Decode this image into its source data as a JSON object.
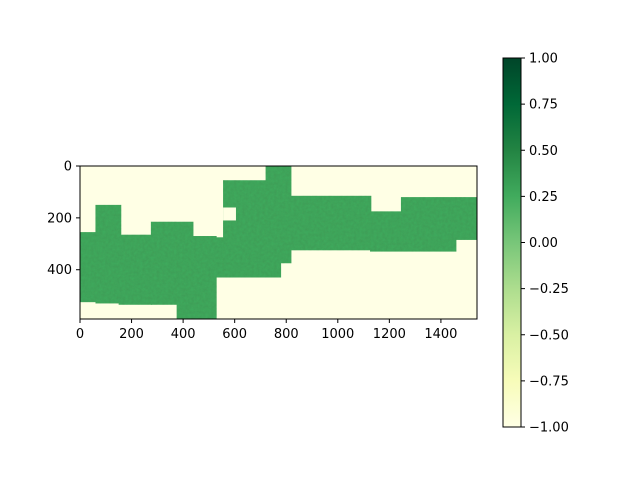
{
  "chart_data": {
    "type": "heatmap",
    "title": "",
    "xlabel": "",
    "ylabel": "",
    "xlim": [
      0,
      1540
    ],
    "ylim": [
      590,
      0
    ],
    "x_ticks": [
      0,
      200,
      400,
      600,
      800,
      1000,
      1200,
      1400
    ],
    "y_ticks": [
      0,
      200,
      400
    ],
    "colormap": "YlGn",
    "colorbar": {
      "range": [
        -1.0,
        1.0
      ],
      "ticks": [
        1.0,
        0.75,
        0.5,
        0.25,
        0.0,
        -0.25,
        -0.5,
        -0.75,
        -1.0
      ],
      "tick_labels": [
        "1.00",
        "0.75",
        "0.50",
        "0.25",
        "0.00",
        "−0.25",
        "−0.50",
        "−0.75",
        "−1.00"
      ],
      "colors": [
        "#ffffe5",
        "#f7fcb9",
        "#d9f0a3",
        "#addd8e",
        "#78c679",
        "#41ab5d",
        "#238443",
        "#006837",
        "#004529"
      ]
    },
    "background_value": -1.0,
    "data_value_typical": 0.25,
    "grid": false,
    "legend": "colorbar-right",
    "mosaic_tiles": [
      {
        "x0": 0,
        "x1": 65,
        "y0": 255,
        "y1": 525
      },
      {
        "x0": 60,
        "x1": 160,
        "y0": 150,
        "y1": 530
      },
      {
        "x0": 150,
        "x1": 280,
        "y0": 265,
        "y1": 535
      },
      {
        "x0": 275,
        "x1": 440,
        "y0": 215,
        "y1": 535
      },
      {
        "x0": 375,
        "x1": 530,
        "y0": 270,
        "y1": 590
      },
      {
        "x0": 430,
        "x1": 600,
        "y0": 275,
        "y1": 430
      },
      {
        "x0": 555,
        "x1": 780,
        "y0": 55,
        "y1": 430
      },
      {
        "x0": 720,
        "x1": 820,
        "y0": 0,
        "y1": 375
      },
      {
        "x0": 800,
        "x1": 1130,
        "y0": 115,
        "y1": 325
      },
      {
        "x0": 1125,
        "x1": 1460,
        "y0": 175,
        "y1": 330
      },
      {
        "x0": 1245,
        "x1": 1540,
        "y0": 120,
        "y1": 285
      }
    ],
    "mosaic_gaps": [
      {
        "x0": 555,
        "x1": 605,
        "y0": 160,
        "y1": 210
      }
    ]
  }
}
